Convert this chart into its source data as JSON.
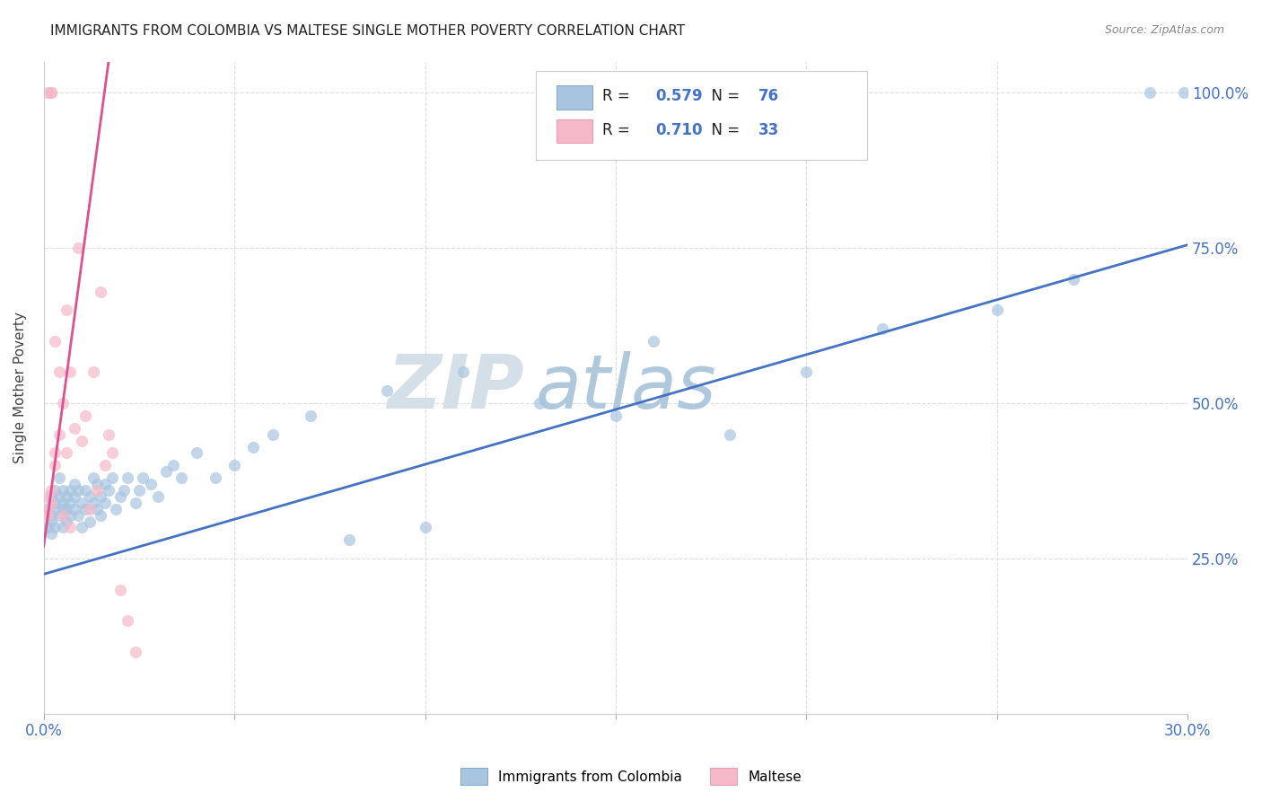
{
  "title": "IMMIGRANTS FROM COLOMBIA VS MALTESE SINGLE MOTHER POVERTY CORRELATION CHART",
  "source": "Source: ZipAtlas.com",
  "ylabel": "Single Mother Poverty",
  "ylabel_ticks": [
    "25.0%",
    "50.0%",
    "75.0%",
    "100.0%"
  ],
  "ylabel_tick_vals": [
    0.25,
    0.5,
    0.75,
    1.0
  ],
  "xlim": [
    0.0,
    0.3
  ],
  "ylim": [
    0.0,
    1.05
  ],
  "blue_R": "0.579",
  "blue_N": "76",
  "pink_R": "0.710",
  "pink_N": "33",
  "blue_color": "#a8c4e0",
  "pink_color": "#f4b8c8",
  "blue_edge_color": "#6090c0",
  "pink_edge_color": "#e080a0",
  "blue_line_color": "#4472c4",
  "pink_line_color": "#e05090",
  "label_color": "#4472c4",
  "watermark_color": "#c8d8e8",
  "blue_scatter_x": [
    0.001,
    0.001,
    0.002,
    0.002,
    0.002,
    0.002,
    0.003,
    0.003,
    0.003,
    0.003,
    0.004,
    0.004,
    0.004,
    0.005,
    0.005,
    0.005,
    0.005,
    0.006,
    0.006,
    0.006,
    0.007,
    0.007,
    0.007,
    0.008,
    0.008,
    0.008,
    0.009,
    0.009,
    0.01,
    0.01,
    0.011,
    0.011,
    0.012,
    0.012,
    0.013,
    0.013,
    0.014,
    0.014,
    0.015,
    0.015,
    0.016,
    0.016,
    0.017,
    0.018,
    0.019,
    0.02,
    0.021,
    0.022,
    0.024,
    0.025,
    0.026,
    0.028,
    0.03,
    0.032,
    0.034,
    0.036,
    0.04,
    0.045,
    0.05,
    0.055,
    0.06,
    0.07,
    0.08,
    0.09,
    0.1,
    0.11,
    0.13,
    0.15,
    0.16,
    0.18,
    0.2,
    0.22,
    0.25,
    0.27,
    0.29,
    0.299
  ],
  "blue_scatter_y": [
    0.33,
    0.3,
    0.35,
    0.32,
    0.31,
    0.29,
    0.34,
    0.33,
    0.36,
    0.3,
    0.35,
    0.32,
    0.38,
    0.33,
    0.3,
    0.34,
    0.36,
    0.31,
    0.35,
    0.33,
    0.36,
    0.32,
    0.34,
    0.35,
    0.33,
    0.37,
    0.32,
    0.36,
    0.34,
    0.3,
    0.33,
    0.36,
    0.35,
    0.31,
    0.34,
    0.38,
    0.33,
    0.37,
    0.35,
    0.32,
    0.37,
    0.34,
    0.36,
    0.38,
    0.33,
    0.35,
    0.36,
    0.38,
    0.34,
    0.36,
    0.38,
    0.37,
    0.35,
    0.39,
    0.4,
    0.38,
    0.42,
    0.38,
    0.4,
    0.43,
    0.45,
    0.48,
    0.28,
    0.52,
    0.3,
    0.55,
    0.5,
    0.48,
    0.6,
    0.45,
    0.55,
    0.62,
    0.65,
    0.7,
    1.0,
    1.0
  ],
  "pink_scatter_x": [
    0.001,
    0.001,
    0.001,
    0.001,
    0.002,
    0.002,
    0.002,
    0.002,
    0.003,
    0.003,
    0.003,
    0.004,
    0.004,
    0.005,
    0.005,
    0.006,
    0.006,
    0.007,
    0.007,
    0.008,
    0.009,
    0.01,
    0.011,
    0.012,
    0.013,
    0.014,
    0.015,
    0.016,
    0.017,
    0.018,
    0.02,
    0.022,
    0.024
  ],
  "pink_scatter_y": [
    0.33,
    0.35,
    0.32,
    1.0,
    0.34,
    0.36,
    1.0,
    1.0,
    0.4,
    0.42,
    0.6,
    0.45,
    0.55,
    0.5,
    0.32,
    0.65,
    0.42,
    0.55,
    0.3,
    0.46,
    0.75,
    0.44,
    0.48,
    0.33,
    0.55,
    0.36,
    0.68,
    0.4,
    0.45,
    0.42,
    0.2,
    0.15,
    0.1
  ],
  "blue_trend_x": [
    0.0,
    0.3
  ],
  "blue_trend_y": [
    0.225,
    0.755
  ],
  "pink_trend_x": [
    0.0,
    0.017
  ],
  "pink_trend_y": [
    0.27,
    1.05
  ]
}
